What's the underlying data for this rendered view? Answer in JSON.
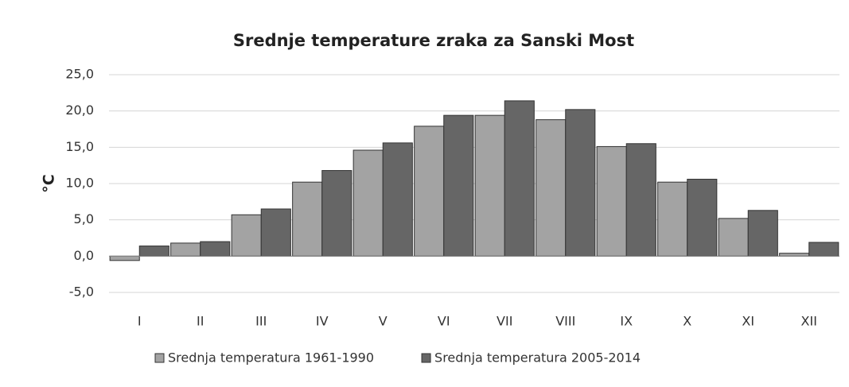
{
  "chart_data": {
    "type": "bar",
    "title": "Srednje temperature zraka za Sanski Most",
    "ylabel": "°C",
    "categories": [
      "I",
      "II",
      "III",
      "IV",
      "V",
      "VI",
      "VII",
      "VIII",
      "IX",
      "X",
      "XI",
      "XII"
    ],
    "series": [
      {
        "name": "Srednja temperatura 1961-1990",
        "color": "#a3a3a3",
        "values": [
          -0.6,
          1.8,
          5.7,
          10.2,
          14.6,
          17.9,
          19.4,
          18.8,
          15.1,
          10.2,
          5.2,
          0.4
        ]
      },
      {
        "name": "Srednja temperatura 2005-2014",
        "color": "#666666",
        "values": [
          1.4,
          2.0,
          6.5,
          11.8,
          15.6,
          19.4,
          21.4,
          20.2,
          15.5,
          10.6,
          6.3,
          1.9
        ]
      }
    ],
    "ylim": [
      -5,
      25
    ],
    "yticks": [
      {
        "value": -5,
        "label": "-5,0"
      },
      {
        "value": 0,
        "label": "0,0"
      },
      {
        "value": 5,
        "label": "5,0"
      },
      {
        "value": 10,
        "label": "10,0"
      },
      {
        "value": 15,
        "label": "15,0"
      },
      {
        "value": 20,
        "label": "20,0"
      },
      {
        "value": 25,
        "label": "25,0"
      }
    ],
    "grid": true
  }
}
